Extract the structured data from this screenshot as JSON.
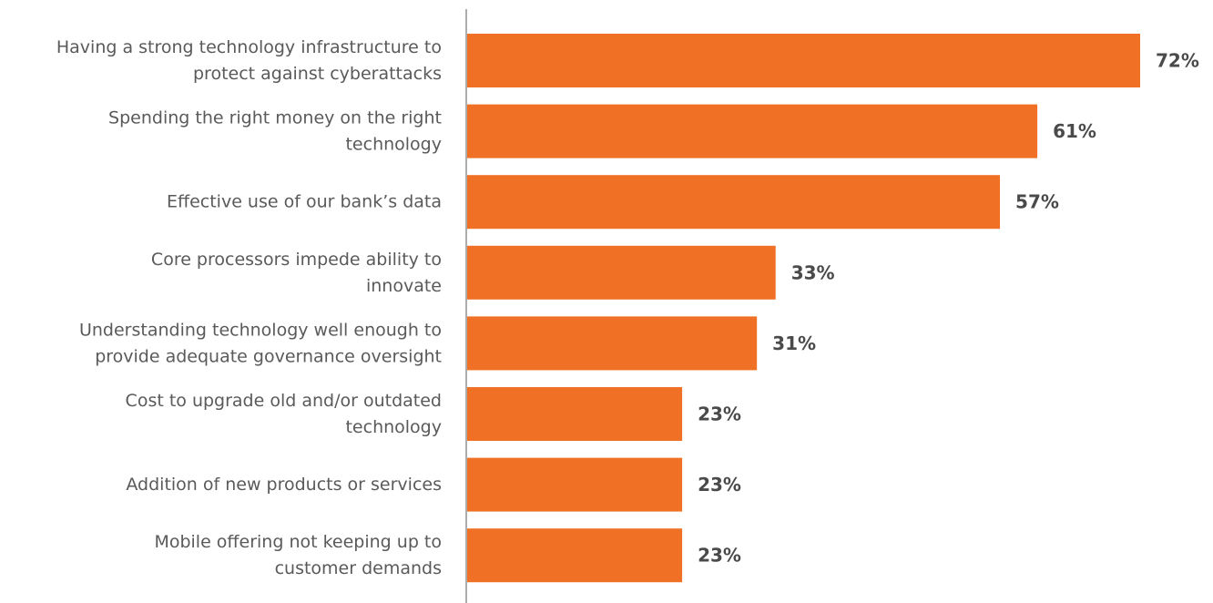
{
  "chart_data": {
    "type": "bar",
    "orientation": "horizontal",
    "categories": [
      [
        "Having a strong technology infrastructure to",
        "protect against cyberattacks"
      ],
      [
        "Spending the right money on the right",
        "technology"
      ],
      [
        "Effective use of our bank’s data"
      ],
      [
        "Core processors impede ability to",
        "innovate"
      ],
      [
        "Understanding technology well enough to",
        "provide adequate governance oversight"
      ],
      [
        "Cost to upgrade old and/or outdated",
        "technology"
      ],
      [
        "Addition of new products or services"
      ],
      [
        "Mobile offering not keeping up to",
        "customer demands"
      ]
    ],
    "values": [
      72,
      61,
      57,
      33,
      31,
      23,
      23,
      23
    ],
    "value_labels": [
      "72%",
      "61%",
      "57%",
      "33%",
      "31%",
      "23%",
      "23%",
      "23%"
    ],
    "xlim": [
      0,
      72
    ],
    "grid": false,
    "legend": "none",
    "colors": {
      "bar": "#F07126",
      "axis": "#5a5a5a",
      "category_text": "#5a5a5a",
      "value_text": "#4a4a4a"
    }
  }
}
